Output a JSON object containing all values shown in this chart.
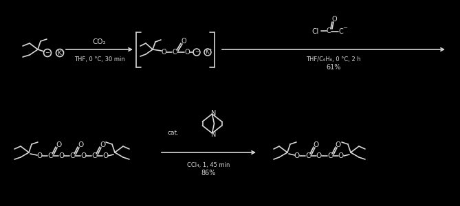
{
  "bg": "#000000",
  "lc": "#d8d8d8",
  "tc": "#d8d8d8",
  "figsize": [
    6.69,
    3.0
  ],
  "dpi": 100,
  "lw": 1.2,
  "arrow1_label_top": "CO₂",
  "arrow1_label_bot": "THF, 0 °C, 30 min",
  "arrow2_label_top": "THF/C₆H₆, 0 °C, 2 h",
  "arrow2_label_bot": "61%",
  "arrow3_label_top": "CCl₄, 1, 45 min",
  "arrow3_label_bot": "86%",
  "cat_label": "cat."
}
